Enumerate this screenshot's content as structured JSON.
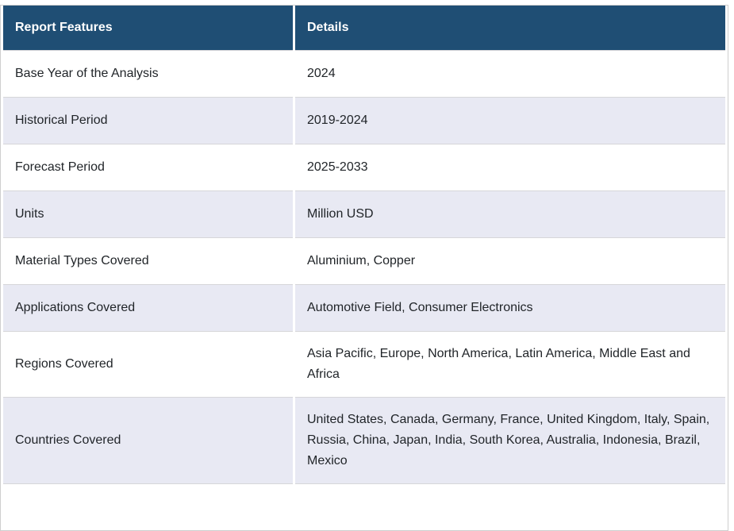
{
  "table": {
    "header": {
      "feature": "Report Features",
      "detail": "Details"
    },
    "rows": [
      {
        "feature": "Base Year of the Analysis",
        "detail": "2024"
      },
      {
        "feature": "Historical Period",
        "detail": "2019-2024"
      },
      {
        "feature": "Forecast Period",
        "detail": "2025-2033"
      },
      {
        "feature": "Units",
        "detail": "Million USD"
      },
      {
        "feature": "Material Types Covered",
        "detail": "Aluminium, Copper"
      },
      {
        "feature": "Applications Covered",
        "detail": "Automotive Field, Consumer Electronics"
      },
      {
        "feature": "Regions Covered",
        "detail": "Asia Pacific, Europe, North America, Latin America, Middle East and Africa"
      },
      {
        "feature": "Countries Covered",
        "detail": "United States, Canada, Germany, France, United Kingdom, Italy, Spain, Russia, China, Japan, India, South Korea, Australia, Indonesia, Brazil, Mexico"
      }
    ],
    "colors": {
      "header_bg": "#1f4e74",
      "header_text": "#ffffff",
      "row_bg": "#ffffff",
      "row_alt_bg": "#e8e9f3",
      "outer_border": "#cfcfcf",
      "row_line": "#d6d6d9",
      "text": "#212529"
    }
  }
}
